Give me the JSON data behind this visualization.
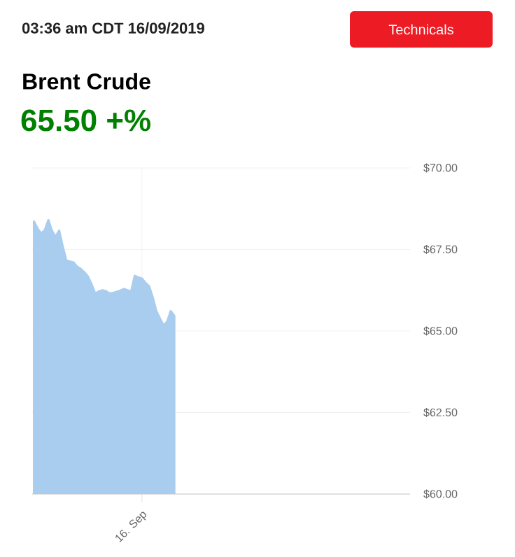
{
  "chart_data": {
    "type": "area",
    "title": "Brent Crude",
    "subtitle": "65.50 +%",
    "annotations": [
      "03:36 am CDT 16/09/2019",
      "Technicals"
    ],
    "categories": [
      null,
      null,
      null,
      null,
      null,
      null,
      null,
      null,
      null,
      null,
      null,
      null,
      null,
      null,
      null,
      null,
      null,
      null,
      null,
      null,
      null,
      null,
      null,
      null,
      null,
      null,
      null,
      null,
      null,
      null,
      "16. Sep",
      null,
      null,
      null,
      null,
      null,
      null,
      null,
      null,
      null,
      null,
      null,
      null,
      null,
      null,
      null,
      null,
      null,
      null,
      null,
      null,
      null,
      null,
      null,
      null,
      null,
      null,
      null,
      null,
      null,
      null,
      null,
      null,
      null,
      null,
      null,
      null,
      null,
      null,
      null,
      null,
      null,
      null,
      null,
      null,
      null,
      null,
      null,
      null,
      null,
      null,
      null,
      null,
      null,
      null,
      null,
      null,
      null,
      null,
      null,
      null,
      null,
      null,
      null,
      null,
      null,
      null,
      null,
      null,
      null,
      null,
      null,
      null,
      null,
      null
    ],
    "series": [
      {
        "color": "#a9cdee",
        "values": [
          68.36,
          68.14,
          67.99,
          68.09,
          68.4,
          68.07,
          67.89,
          68.08,
          67.58,
          67.16,
          67.13,
          67.1,
          66.97,
          66.9,
          66.8,
          66.67,
          66.43,
          66.15,
          66.21,
          66.25,
          66.22,
          66.15,
          66.17,
          66.2,
          66.24,
          66.29,
          66.25,
          66.21,
          66.69,
          66.64,
          66.61,
          66.47,
          66.37,
          66.03,
          65.61,
          65.38,
          65.17,
          65.28,
          65.61,
          65.46,
          null,
          null,
          null,
          null,
          null,
          null,
          null,
          null,
          null,
          null,
          null,
          null,
          null,
          null,
          null,
          null,
          null,
          null,
          null,
          null,
          null,
          null,
          null,
          null,
          null,
          null,
          null,
          null,
          null,
          null,
          null,
          null,
          null,
          null,
          null,
          null,
          null,
          null,
          null,
          null,
          null,
          null,
          null,
          null,
          null,
          null,
          null,
          null,
          null,
          null,
          null,
          null,
          null,
          null,
          null,
          null,
          null,
          null,
          null,
          null,
          null,
          null,
          null,
          null,
          null
        ]
      }
    ],
    "ylim": [
      60,
      70
    ],
    "yticks": [
      {
        "value": 60,
        "label": "$60.00"
      },
      {
        "value": 62.5,
        "label": "$62.50"
      },
      {
        "value": 65,
        "label": "$65.00"
      },
      {
        "value": 67.5,
        "label": "$67.50"
      },
      {
        "value": 70,
        "label": "$70.00"
      }
    ],
    "grid": true
  }
}
